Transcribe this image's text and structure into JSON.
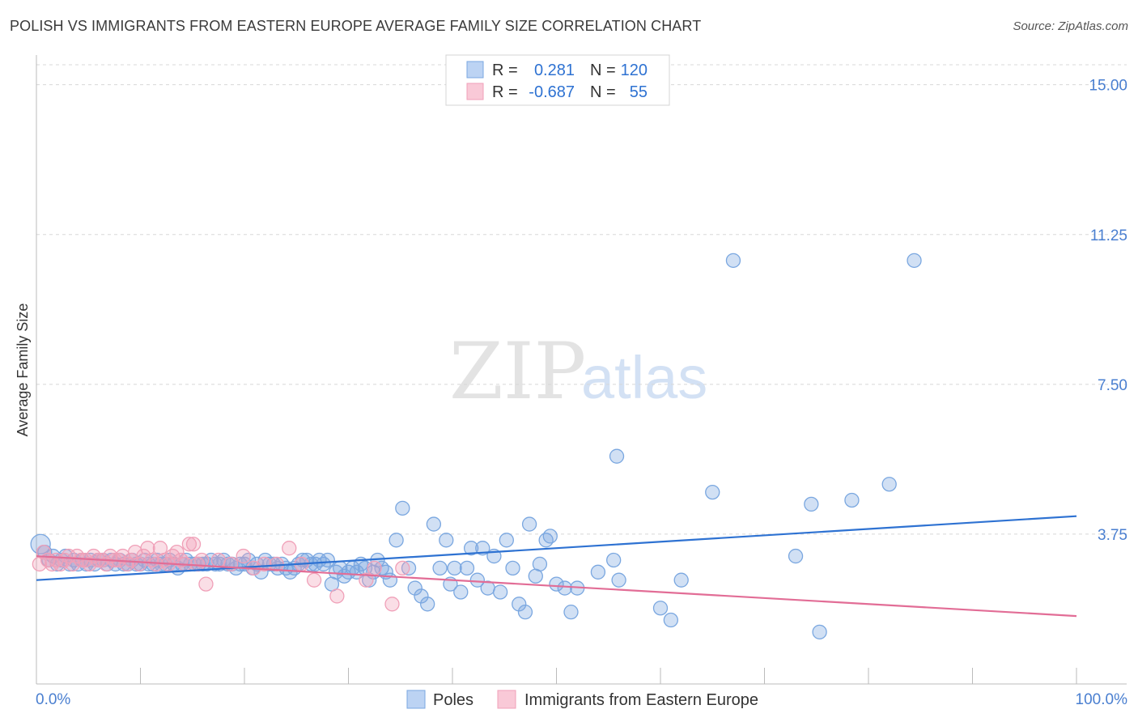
{
  "header": {
    "title": "POLISH VS IMMIGRANTS FROM EASTERN EUROPE AVERAGE FAMILY SIZE CORRELATION CHART",
    "source": "Source: ZipAtlas.com"
  },
  "watermark": {
    "zip": "ZIP",
    "atlas": "atlas"
  },
  "legend": {
    "rows": [
      {
        "r_label": "R =",
        "r_value": "0.281",
        "n_label": "N =",
        "n_value": "120"
      },
      {
        "r_label": "R =",
        "r_value": "-0.687",
        "n_label": "N =",
        "n_value": "55"
      }
    ]
  },
  "colors": {
    "poles": "#7aa7e0",
    "poles_line": "#2e72d2",
    "immigrants": "#f0a0b8",
    "immigrants_line": "#e26d96",
    "tick_text": "#4a7fd0",
    "grid": "#d8d8d8"
  },
  "chart_data": {
    "type": "scatter",
    "title": "POLISH VS IMMIGRANTS FROM EASTERN EUROPE AVERAGE FAMILY SIZE CORRELATION CHART",
    "xlabel": "",
    "ylabel": "Average Family Size",
    "xlim": [
      0,
      100
    ],
    "ylim": [
      0,
      15.5
    ],
    "x_tick_labels": [
      "0.0%",
      "100.0%"
    ],
    "y_ticks": [
      3.75,
      7.5,
      11.25,
      15.0
    ],
    "y_tick_labels": [
      "3.75",
      "7.50",
      "11.25",
      "15.00"
    ],
    "grid": "horizontal dashed",
    "legend_position": "top-center",
    "series": [
      {
        "name": "Poles",
        "trend": {
          "x": [
            0,
            100
          ],
          "y": [
            2.6,
            4.2
          ]
        },
        "points": [
          [
            0.4,
            3.5
          ],
          [
            0.8,
            3.3
          ],
          [
            1.2,
            3.1
          ],
          [
            1.6,
            3.2
          ],
          [
            2.0,
            3.0
          ],
          [
            2.4,
            3.1
          ],
          [
            2.8,
            3.2
          ],
          [
            3.2,
            3.0
          ],
          [
            3.6,
            3.1
          ],
          [
            4.0,
            3.0
          ],
          [
            4.4,
            3.1
          ],
          [
            4.8,
            3.0
          ],
          [
            5.2,
            3.1
          ],
          [
            5.6,
            3.0
          ],
          [
            6.0,
            3.1
          ],
          [
            6.4,
            3.1
          ],
          [
            6.8,
            3.0
          ],
          [
            7.2,
            3.1
          ],
          [
            7.6,
            3.0
          ],
          [
            8.0,
            3.1
          ],
          [
            8.4,
            3.0
          ],
          [
            8.8,
            3.0
          ],
          [
            9.2,
            3.1
          ],
          [
            9.6,
            3.0
          ],
          [
            10.0,
            3.0
          ],
          [
            10.4,
            3.1
          ],
          [
            10.8,
            3.0
          ],
          [
            11.2,
            3.0
          ],
          [
            11.6,
            3.1
          ],
          [
            12.0,
            3.0
          ],
          [
            12.4,
            3.0
          ],
          [
            12.8,
            3.1
          ],
          [
            13.2,
            3.0
          ],
          [
            13.6,
            2.9
          ],
          [
            14.0,
            3.0
          ],
          [
            14.4,
            3.1
          ],
          [
            14.8,
            3.0
          ],
          [
            15.2,
            3.0
          ],
          [
            15.6,
            3.0
          ],
          [
            16.0,
            3.0
          ],
          [
            16.4,
            3.0
          ],
          [
            16.8,
            3.1
          ],
          [
            17.2,
            3.0
          ],
          [
            17.6,
            3.0
          ],
          [
            18.0,
            3.1
          ],
          [
            18.4,
            3.0
          ],
          [
            18.8,
            3.0
          ],
          [
            19.2,
            2.9
          ],
          [
            19.6,
            3.0
          ],
          [
            20.0,
            3.0
          ],
          [
            20.4,
            3.1
          ],
          [
            20.8,
            2.9
          ],
          [
            21.2,
            3.0
          ],
          [
            21.6,
            2.8
          ],
          [
            22.0,
            3.1
          ],
          [
            22.4,
            3.0
          ],
          [
            22.8,
            3.0
          ],
          [
            23.2,
            2.9
          ],
          [
            23.6,
            3.0
          ],
          [
            24.0,
            2.9
          ],
          [
            24.4,
            2.8
          ],
          [
            24.8,
            2.9
          ],
          [
            25.2,
            3.0
          ],
          [
            25.6,
            3.1
          ],
          [
            26.0,
            3.1
          ],
          [
            26.4,
            3.0
          ],
          [
            26.8,
            3.0
          ],
          [
            27.2,
            3.1
          ],
          [
            27.6,
            3.0
          ],
          [
            28.0,
            3.1
          ],
          [
            28.4,
            2.5
          ],
          [
            28.8,
            2.8
          ],
          [
            29.2,
            2.9
          ],
          [
            29.6,
            2.7
          ],
          [
            30.0,
            2.8
          ],
          [
            30.4,
            2.9
          ],
          [
            30.8,
            2.8
          ],
          [
            31.2,
            3.0
          ],
          [
            31.6,
            2.9
          ],
          [
            32.0,
            2.6
          ],
          [
            32.4,
            2.8
          ],
          [
            32.8,
            3.1
          ],
          [
            33.2,
            2.9
          ],
          [
            33.6,
            2.8
          ],
          [
            34.0,
            2.6
          ],
          [
            34.6,
            3.6
          ],
          [
            35.2,
            4.4
          ],
          [
            35.8,
            2.9
          ],
          [
            36.4,
            2.4
          ],
          [
            37.0,
            2.2
          ],
          [
            37.6,
            2.0
          ],
          [
            38.2,
            4.0
          ],
          [
            38.8,
            2.9
          ],
          [
            39.4,
            3.6
          ],
          [
            39.8,
            2.5
          ],
          [
            40.2,
            2.9
          ],
          [
            40.8,
            2.3
          ],
          [
            41.4,
            2.9
          ],
          [
            41.8,
            3.4
          ],
          [
            42.4,
            2.6
          ],
          [
            42.9,
            3.4
          ],
          [
            43.4,
            2.4
          ],
          [
            44.0,
            3.2
          ],
          [
            44.6,
            2.3
          ],
          [
            45.2,
            3.6
          ],
          [
            45.8,
            2.9
          ],
          [
            46.4,
            2.0
          ],
          [
            47.0,
            1.8
          ],
          [
            47.4,
            4.0
          ],
          [
            48.0,
            2.7
          ],
          [
            48.4,
            3.0
          ],
          [
            49.0,
            3.6
          ],
          [
            49.4,
            3.7
          ],
          [
            50.0,
            2.5
          ],
          [
            50.8,
            2.4
          ],
          [
            51.4,
            1.8
          ],
          [
            52.0,
            2.4
          ],
          [
            54.0,
            2.8
          ],
          [
            56.0,
            2.6
          ],
          [
            60.0,
            1.9
          ],
          [
            61.0,
            1.6
          ],
          [
            62.0,
            2.6
          ],
          [
            65.0,
            4.8
          ],
          [
            67.0,
            10.6
          ],
          [
            73.0,
            3.2
          ],
          [
            74.5,
            4.5
          ],
          [
            75.3,
            1.3
          ],
          [
            78.4,
            4.6
          ],
          [
            82.0,
            5.0
          ],
          [
            84.4,
            10.6
          ],
          [
            55.8,
            5.7
          ],
          [
            55.5,
            3.1
          ]
        ]
      },
      {
        "name": "Immigrants from Eastern Europe",
        "trend": {
          "x": [
            0,
            100
          ],
          "y": [
            3.2,
            1.7
          ]
        },
        "points": [
          [
            0.3,
            3.0
          ],
          [
            0.7,
            3.3
          ],
          [
            1.1,
            3.1
          ],
          [
            1.5,
            3.0
          ],
          [
            1.9,
            3.1
          ],
          [
            2.3,
            3.0
          ],
          [
            2.7,
            3.1
          ],
          [
            3.1,
            3.2
          ],
          [
            3.5,
            3.0
          ],
          [
            3.9,
            3.2
          ],
          [
            4.3,
            3.1
          ],
          [
            4.7,
            3.1
          ],
          [
            5.1,
            3.0
          ],
          [
            5.5,
            3.2
          ],
          [
            5.9,
            3.1
          ],
          [
            6.3,
            3.1
          ],
          [
            6.7,
            3.0
          ],
          [
            7.1,
            3.2
          ],
          [
            7.5,
            3.1
          ],
          [
            7.9,
            3.1
          ],
          [
            8.3,
            3.2
          ],
          [
            8.7,
            3.0
          ],
          [
            9.1,
            3.1
          ],
          [
            9.5,
            3.3
          ],
          [
            9.9,
            3.0
          ],
          [
            10.3,
            3.2
          ],
          [
            10.7,
            3.4
          ],
          [
            11.1,
            3.1
          ],
          [
            11.5,
            3.0
          ],
          [
            11.9,
            3.4
          ],
          [
            12.3,
            3.1
          ],
          [
            12.7,
            3.0
          ],
          [
            13.1,
            3.2
          ],
          [
            13.5,
            3.3
          ],
          [
            13.9,
            3.1
          ],
          [
            14.3,
            3.0
          ],
          [
            14.7,
            3.5
          ],
          [
            15.1,
            3.5
          ],
          [
            15.5,
            3.0
          ],
          [
            15.9,
            3.1
          ],
          [
            16.3,
            2.5
          ],
          [
            17.5,
            3.1
          ],
          [
            18.7,
            3.0
          ],
          [
            19.9,
            3.2
          ],
          [
            20.9,
            2.9
          ],
          [
            21.9,
            3.0
          ],
          [
            23.1,
            3.0
          ],
          [
            24.3,
            3.4
          ],
          [
            25.5,
            3.0
          ],
          [
            26.7,
            2.6
          ],
          [
            28.9,
            2.2
          ],
          [
            31.7,
            2.6
          ],
          [
            32.5,
            2.9
          ],
          [
            34.2,
            2.0
          ],
          [
            35.2,
            2.9
          ]
        ]
      }
    ]
  },
  "bottom_legend": {
    "poles": "Poles",
    "immigrants": "Immigrants from Eastern Europe"
  }
}
